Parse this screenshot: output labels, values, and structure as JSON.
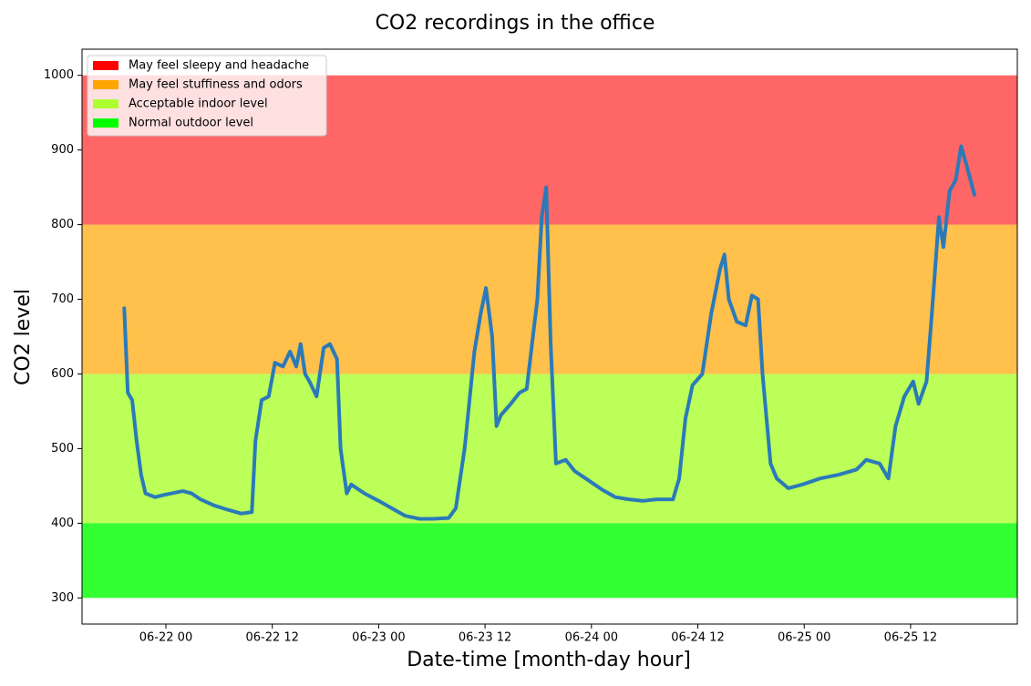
{
  "chart_data": {
    "type": "line",
    "title": "CO2 recordings in the office",
    "x_label": "Date-time [month-day hour]",
    "y_label": "CO2 level",
    "xlim": [
      -9.46,
      96.04
    ],
    "ylim": [
      265,
      1035
    ],
    "xticks": [
      {
        "value": 0,
        "label": "06-22 00"
      },
      {
        "value": 12,
        "label": "06-22 12"
      },
      {
        "value": 24,
        "label": "06-23 00"
      },
      {
        "value": 36,
        "label": "06-23 12"
      },
      {
        "value": 48,
        "label": "06-24 00"
      },
      {
        "value": 60,
        "label": "06-24 12"
      },
      {
        "value": 72,
        "label": "06-25 00"
      },
      {
        "value": 84,
        "label": "06-25 12"
      }
    ],
    "yticks": [
      300,
      400,
      500,
      600,
      700,
      800,
      900,
      1000
    ],
    "grid": false,
    "legend": "upper left",
    "bands": [
      {
        "name": "May feel sleepy and headache",
        "color": "#ff0000",
        "alpha": 0.6,
        "range": [
          800,
          1000
        ]
      },
      {
        "name": "May feel stuffiness and odors",
        "color": "#ffa500",
        "alpha": 0.7,
        "range": [
          600,
          800
        ]
      },
      {
        "name": "Acceptable indoor level",
        "color": "#adff2f",
        "alpha": 0.8,
        "range": [
          400,
          600
        ]
      },
      {
        "name": "Normal outdoor level",
        "color": "#00ff00",
        "alpha": 0.8,
        "range": [
          300,
          400
        ]
      }
    ],
    "series": [
      {
        "color": "#2a7ab9",
        "x": [
          -4.7,
          -4.3,
          -3.8,
          -3.3,
          -2.8,
          -2.3,
          -1.2,
          -0.2,
          1.9,
          2.9,
          3.9,
          5.4,
          7.0,
          8.5,
          9.7,
          10.1,
          10.8,
          11.6,
          12.3,
          13.2,
          14.0,
          14.7,
          15.2,
          15.7,
          16.2,
          17.0,
          17.8,
          18.5,
          19.3,
          19.7,
          20.4,
          20.9,
          22.4,
          24.0,
          25.5,
          27.0,
          28.6,
          30.1,
          31.9,
          32.7,
          33.7,
          34.8,
          35.5,
          36.1,
          36.8,
          37.3,
          37.8,
          38.9,
          39.9,
          40.7,
          41.4,
          41.9,
          42.4,
          42.9,
          43.4,
          44.0,
          45.1,
          46.1,
          47.6,
          49.2,
          50.7,
          52.2,
          53.8,
          55.3,
          57.2,
          57.9,
          58.6,
          59.4,
          60.5,
          61.5,
          62.5,
          63.0,
          63.5,
          64.4,
          65.4,
          66.1,
          66.8,
          67.3,
          68.2,
          68.9,
          70.2,
          71.8,
          73.8,
          75.9,
          77.9,
          79.0,
          80.5,
          81.5,
          82.3,
          83.3,
          84.3,
          84.9,
          85.8,
          86.4,
          87.2,
          87.7,
          88.4,
          89.1,
          89.7,
          90.3,
          91.2
        ],
        "values": [
          688,
          575,
          565,
          510,
          465,
          440,
          435,
          438,
          443,
          440,
          432,
          424,
          418,
          413,
          415,
          510,
          565,
          570,
          615,
          610,
          630,
          610,
          640,
          600,
          590,
          570,
          635,
          640,
          620,
          500,
          440,
          452,
          440,
          430,
          420,
          410,
          406,
          406,
          407,
          420,
          500,
          630,
          680,
          715,
          650,
          530,
          545,
          560,
          575,
          580,
          650,
          700,
          810,
          850,
          640,
          480,
          485,
          470,
          458,
          445,
          435,
          432,
          430,
          432,
          432,
          460,
          540,
          585,
          600,
          680,
          740,
          760,
          700,
          670,
          665,
          705,
          700,
          600,
          480,
          460,
          447,
          452,
          460,
          465,
          472,
          485,
          480,
          460,
          530,
          570,
          590,
          560,
          590,
          680,
          810,
          770,
          845,
          860,
          905,
          880,
          840
        ]
      }
    ]
  }
}
